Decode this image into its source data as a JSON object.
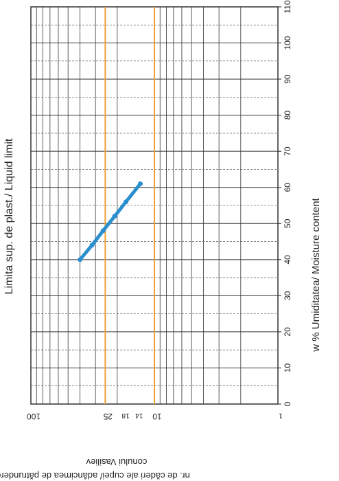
{
  "chart_data": {
    "type": "line",
    "title": "Limita sup. de plast./ Liquid limit",
    "xlabel": "w % Umiditatea/ Moisture content",
    "ylabel_line1": "nr. de căderi ale cupei/ adâncimea de pătrundere a",
    "ylabel_line2": "conului Vasiliev",
    "x_scale": "linear",
    "y_scale": "log",
    "xlim": [
      0,
      110
    ],
    "ylim": [
      1,
      100
    ],
    "x_ticks": [
      0,
      10,
      20,
      30,
      40,
      50,
      60,
      70,
      80,
      90,
      100,
      110
    ],
    "x_tick_labels": [
      "0",
      "10",
      "20",
      "30",
      "40",
      "50",
      "60",
      "70",
      "80",
      "90",
      "100",
      "110"
    ],
    "y_tick_labels": [
      {
        "value": 100,
        "label": "100"
      },
      {
        "value": 25,
        "label": "25"
      },
      {
        "value": 18,
        "label": "18"
      },
      {
        "value": 14,
        "label": "14"
      },
      {
        "value": 10,
        "label": "10"
      },
      {
        "value": 1,
        "label": "1"
      }
    ],
    "reference_lines": [
      {
        "y": 25,
        "color": "#f0a030"
      },
      {
        "y": 10,
        "color": "#f0a030"
      }
    ],
    "series": [
      {
        "color": "#2a8fcf",
        "x": [
          40,
          44,
          48,
          52,
          56,
          61
        ],
        "y": [
          40,
          32,
          26,
          21,
          17,
          13
        ]
      }
    ],
    "grid": true,
    "orientation": "rotated 90° clockwise"
  }
}
